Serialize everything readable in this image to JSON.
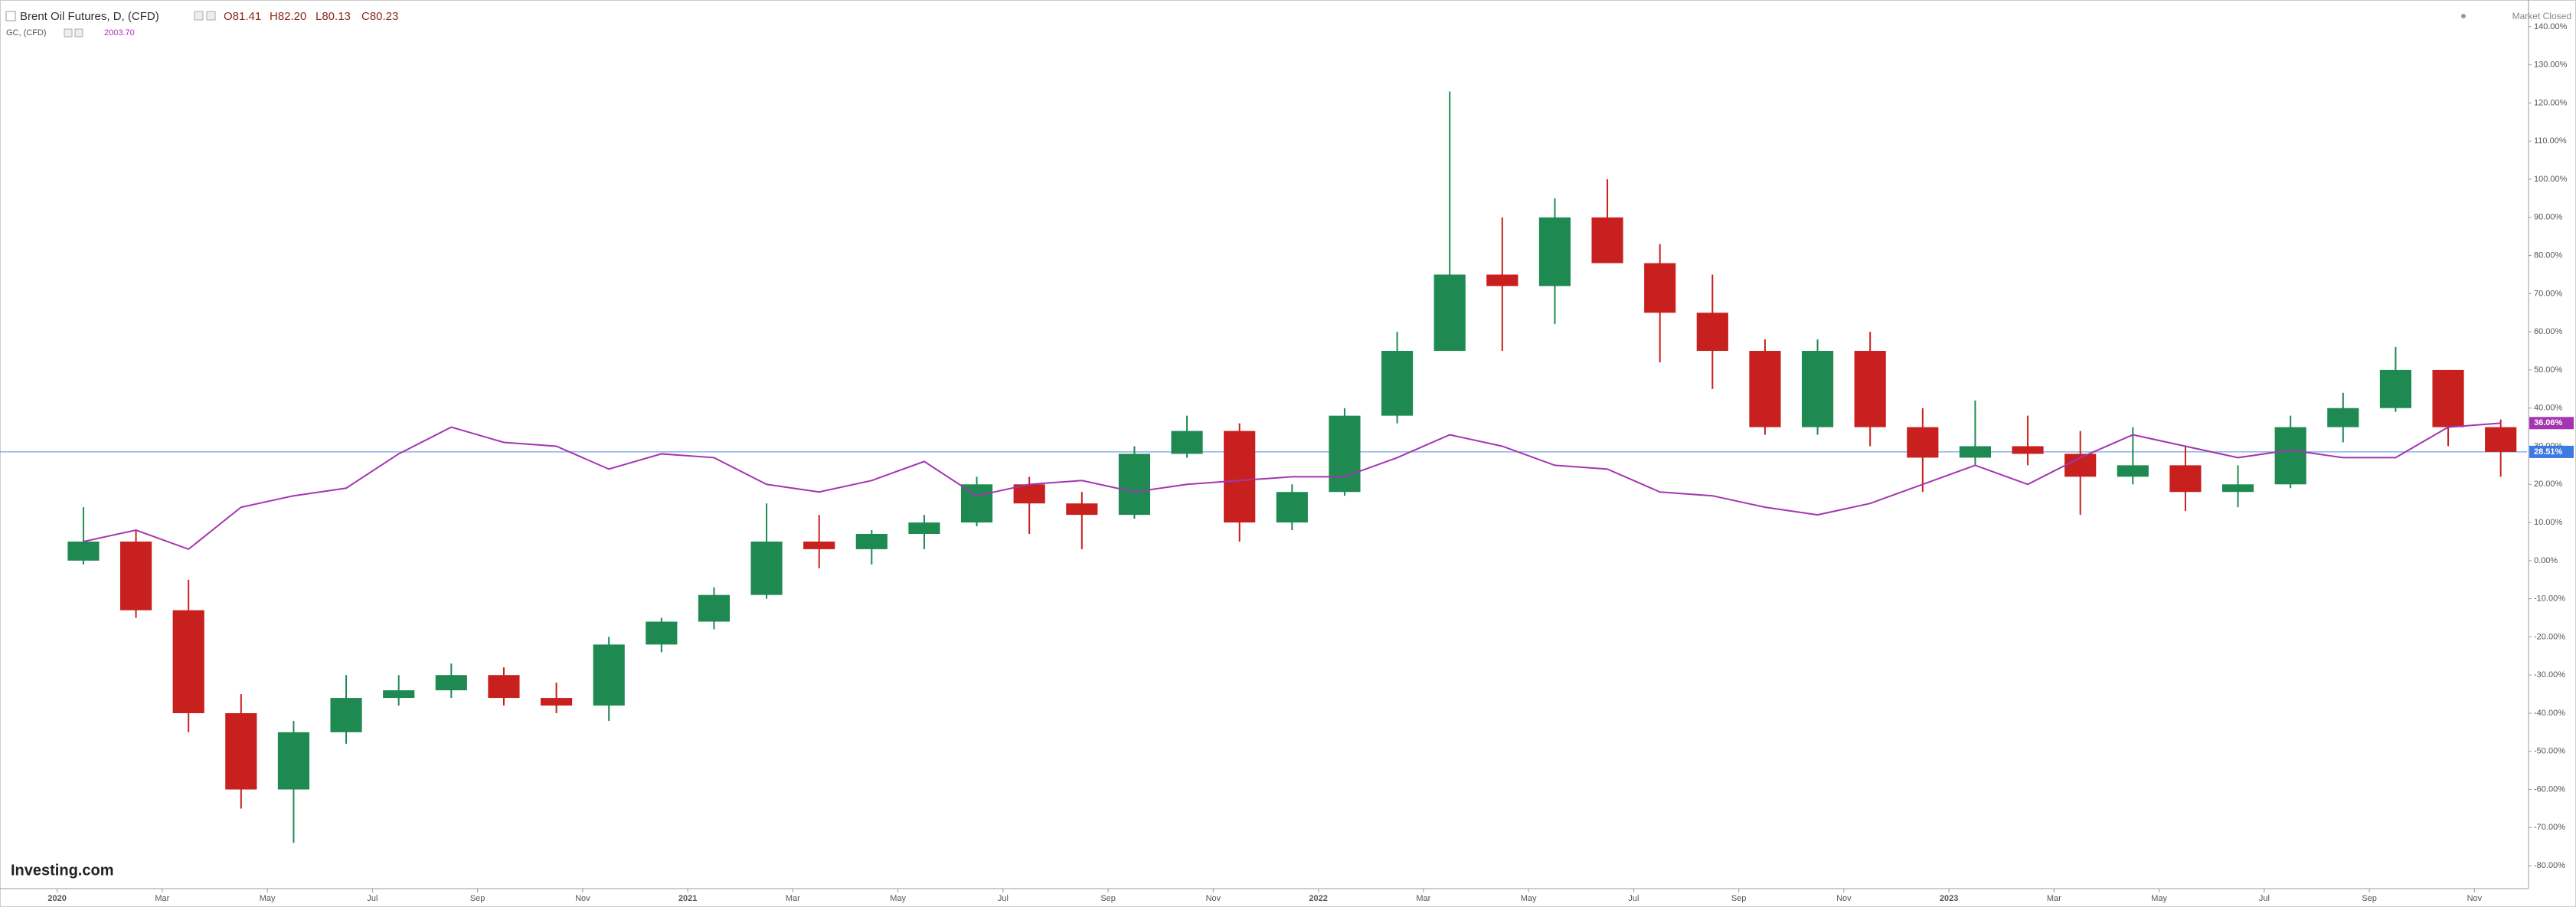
{
  "header": {
    "main": {
      "name": "Brent Oil Futures, D, (CFD)",
      "quotes": [
        "O81.41",
        "H82.20",
        "L80.13",
        "C80.23"
      ]
    },
    "overlay": {
      "name": "GC, (CFD)",
      "quote": "2003.70"
    },
    "status": "Market Closed",
    "logo": "Investing.com"
  },
  "chart_data": {
    "type": "candlestick",
    "x": [
      "2020-01",
      "2020-02",
      "2020-03",
      "2020-04",
      "2020-05",
      "2020-06",
      "2020-07",
      "2020-08",
      "2020-09",
      "2020-10",
      "2020-11",
      "2020-12",
      "2021-01",
      "2021-02",
      "2021-03",
      "2021-04",
      "2021-05",
      "2021-06",
      "2021-07",
      "2021-08",
      "2021-09",
      "2021-10",
      "2021-11",
      "2021-12",
      "2022-01",
      "2022-02",
      "2022-03",
      "2022-04",
      "2022-05",
      "2022-06",
      "2022-07",
      "2022-08",
      "2022-09",
      "2022-10",
      "2022-11",
      "2022-12",
      "2023-01",
      "2023-02",
      "2023-03",
      "2023-04",
      "2023-05",
      "2023-06",
      "2023-07",
      "2023-08",
      "2023-09",
      "2023-10",
      "2023-11"
    ],
    "open": [
      0,
      5,
      -13,
      -40,
      -60,
      -45,
      -36,
      -34,
      -30,
      -36,
      -38,
      -22,
      -16,
      -9,
      5,
      3,
      7,
      10,
      20,
      15,
      12,
      28,
      34,
      10,
      18,
      38,
      55,
      75,
      72,
      90,
      78,
      65,
      55,
      35,
      55,
      35,
      27,
      30,
      28,
      22,
      25,
      18,
      20,
      35,
      40,
      50,
      35
    ],
    "high": [
      14,
      8,
      -5,
      -35,
      -42,
      -30,
      -30,
      -27,
      -28,
      -32,
      -20,
      -15,
      -7,
      15,
      12,
      8,
      12,
      22,
      22,
      18,
      30,
      38,
      36,
      20,
      40,
      60,
      123,
      90,
      95,
      100,
      83,
      75,
      58,
      58,
      60,
      40,
      42,
      38,
      34,
      35,
      30,
      25,
      38,
      44,
      56,
      50,
      37
    ],
    "low": [
      -1,
      -15,
      -45,
      -65,
      -74,
      -48,
      -38,
      -36,
      -38,
      -40,
      -42,
      -24,
      -18,
      -10,
      -2,
      -1,
      3,
      9,
      7,
      3,
      11,
      27,
      5,
      8,
      17,
      36,
      55,
      55,
      62,
      78,
      52,
      45,
      33,
      33,
      30,
      18,
      25,
      25,
      12,
      20,
      13,
      14,
      19,
      31,
      39,
      30,
      22
    ],
    "close": [
      5,
      -13,
      -40,
      -60,
      -45,
      -36,
      -34,
      -30,
      -36,
      -38,
      -22,
      -16,
      -9,
      5,
      3,
      7,
      10,
      20,
      15,
      12,
      28,
      34,
      10,
      18,
      38,
      55,
      75,
      72,
      90,
      78,
      65,
      55,
      35,
      55,
      35,
      27,
      30,
      28,
      22,
      25,
      18,
      20,
      35,
      40,
      50,
      35,
      28.51
    ],
    "up_color": "#1e8a52",
    "down_color": "#c8201e",
    "last_label": "28.51%",
    "last_color": "#3d7be0",
    "overlay": {
      "type": "line",
      "name": "GC, (CFD)",
      "color": "#a336b0",
      "last_label": "36.06%",
      "values": [
        5,
        8,
        3,
        14,
        17,
        19,
        28,
        35,
        31,
        30,
        24,
        28,
        27,
        20,
        18,
        21,
        26,
        17,
        20,
        21,
        18,
        20,
        21,
        22,
        22,
        27,
        33,
        30,
        25,
        24,
        18,
        17,
        14,
        12,
        15,
        20,
        25,
        20,
        27,
        33,
        30,
        27,
        29,
        27,
        27,
        35,
        36.06
      ]
    },
    "xlim": [
      "2019-12",
      "2023-12"
    ],
    "xticks": [
      {
        "value": "2020-01",
        "label": "2020"
      },
      {
        "value": "2020-03",
        "label": "Mar"
      },
      {
        "value": "2020-05",
        "label": "May"
      },
      {
        "value": "2020-07",
        "label": "Jul"
      },
      {
        "value": "2020-09",
        "label": "Sep"
      },
      {
        "value": "2020-11",
        "label": "Nov"
      },
      {
        "value": "2021-01",
        "label": "2021"
      },
      {
        "value": "2021-03",
        "label": "Mar"
      },
      {
        "value": "2021-05",
        "label": "May"
      },
      {
        "value": "2021-07",
        "label": "Jul"
      },
      {
        "value": "2021-09",
        "label": "Sep"
      },
      {
        "value": "2021-11",
        "label": "Nov"
      },
      {
        "value": "2022-01",
        "label": "2022"
      },
      {
        "value": "2022-03",
        "label": "Mar"
      },
      {
        "value": "2022-05",
        "label": "May"
      },
      {
        "value": "2022-07",
        "label": "Jul"
      },
      {
        "value": "2022-09",
        "label": "Sep"
      },
      {
        "value": "2022-11",
        "label": "Nov"
      },
      {
        "value": "2023-01",
        "label": "2023"
      },
      {
        "value": "2023-03",
        "label": "Mar"
      },
      {
        "value": "2023-05",
        "label": "May"
      },
      {
        "value": "2023-07",
        "label": "Jul"
      },
      {
        "value": "2023-09",
        "label": "Sep"
      },
      {
        "value": "2023-11",
        "label": "Nov"
      }
    ],
    "ylim": [
      -86,
      147
    ],
    "yticks": [
      {
        "value": -80,
        "label": "-80.00%"
      },
      {
        "value": -70,
        "label": "-70.00%"
      },
      {
        "value": -60,
        "label": "-60.00%"
      },
      {
        "value": -50,
        "label": "-50.00%"
      },
      {
        "value": -40,
        "label": "-40.00%"
      },
      {
        "value": -30,
        "label": "-30.00%"
      },
      {
        "value": -20,
        "label": "-20.00%"
      },
      {
        "value": -10,
        "label": "-10.00%"
      },
      {
        "value": 0,
        "label": "0.00%"
      },
      {
        "value": 10,
        "label": "10.00%"
      },
      {
        "value": 20,
        "label": "20.00%"
      },
      {
        "value": 30,
        "label": "30.00%"
      },
      {
        "value": 40,
        "label": "40.00%"
      },
      {
        "value": 50,
        "label": "50.00%"
      },
      {
        "value": 60,
        "label": "60.00%"
      },
      {
        "value": 70,
        "label": "70.00%"
      },
      {
        "value": 80,
        "label": "80.00%"
      },
      {
        "value": 90,
        "label": "90.00%"
      },
      {
        "value": 100,
        "label": "100.00%"
      },
      {
        "value": 110,
        "label": "110.00%"
      },
      {
        "value": 120,
        "label": "120.00%"
      },
      {
        "value": 130,
        "label": "130.00%"
      },
      {
        "value": 140,
        "label": "140.00%"
      }
    ]
  }
}
